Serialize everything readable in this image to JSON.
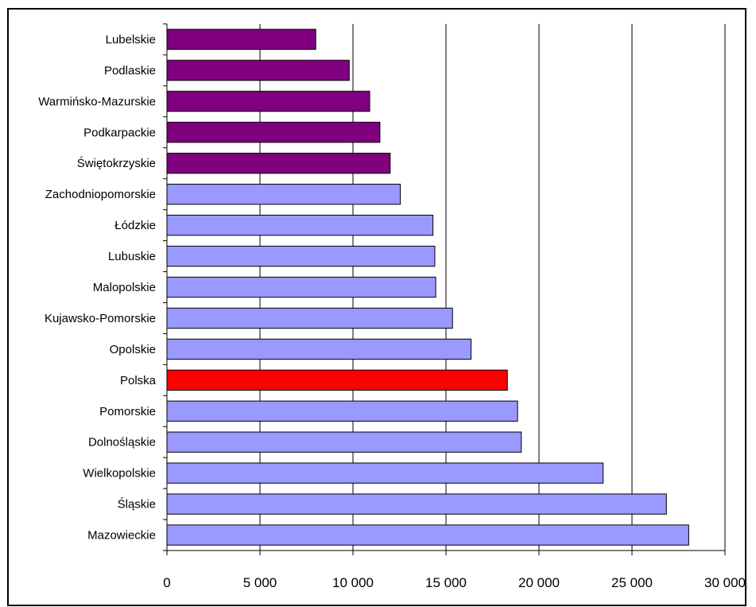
{
  "chart_data": {
    "type": "bar",
    "orientation": "horizontal",
    "title": "",
    "xlabel": "",
    "ylabel": "",
    "xlim": [
      0,
      30000
    ],
    "xticks": [
      0,
      5000,
      10000,
      15000,
      20000,
      25000,
      30000
    ],
    "xtick_labels": [
      "0",
      "5 000",
      "10 000",
      "15 000",
      "20 000",
      "25 000",
      "30 000"
    ],
    "grid": "vertical gridlines at major ticks",
    "legend": "none",
    "categories": [
      "Lubelskie",
      "Podlaskie",
      "Warmińsko-Mazurskie",
      "Podkarpackie",
      "Świętokrzyskie",
      "Zachodniopomorskie",
      "Łódzkie",
      "Lubuskie",
      "Malopolskie",
      "Kujawsko-Pomorskie",
      "Opolskie",
      "Polska",
      "Pomorskie",
      "Dolnośląskie",
      "Wielkopolskie",
      "Śląskie",
      "Mazowieckie"
    ],
    "values": [
      8000,
      9800,
      10900,
      11450,
      12000,
      12550,
      14300,
      14400,
      14450,
      15350,
      16350,
      18300,
      18850,
      19050,
      23450,
      26850,
      28050
    ],
    "colors": {
      "purple": "#800080",
      "blue": "#9999ff",
      "red": "#ff0000"
    },
    "bar_colors": [
      "purple",
      "purple",
      "purple",
      "purple",
      "purple",
      "blue",
      "blue",
      "blue",
      "blue",
      "blue",
      "blue",
      "red",
      "blue",
      "blue",
      "blue",
      "blue",
      "blue"
    ]
  }
}
